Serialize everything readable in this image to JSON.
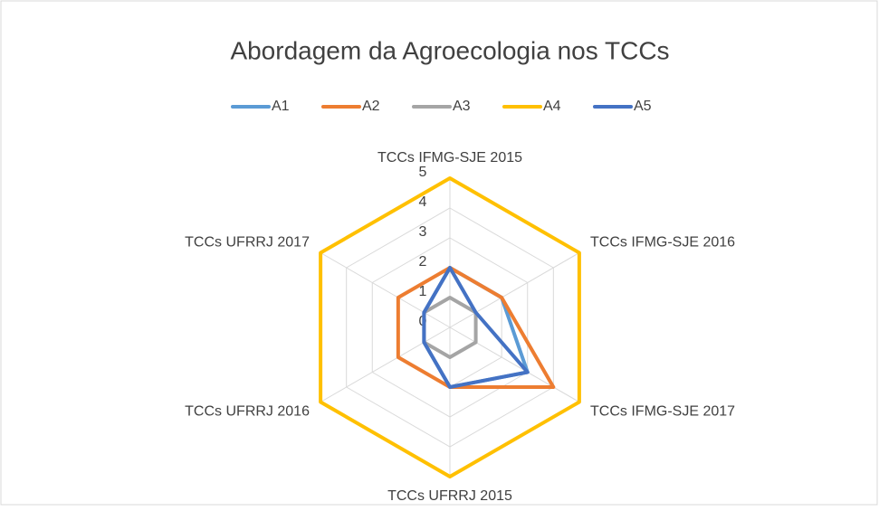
{
  "chart_data": {
    "type": "radar",
    "title": "Abordagem da Agroecologia nos TCCs",
    "categories": [
      "TCCs IFMG-SJE 2015",
      "TCCs IFMG-SJE 2016",
      "TCCs IFMG-SJE 2017",
      "TCCs UFRRJ 2015",
      "TCCs UFRRJ 2016",
      "TCCs UFRRJ 2017"
    ],
    "series": [
      {
        "name": "A1",
        "color": "#5b9bd5",
        "values": [
          2,
          2,
          3,
          2,
          1,
          1
        ]
      },
      {
        "name": "A2",
        "color": "#ed7d31",
        "values": [
          2,
          2,
          4,
          2,
          2,
          2
        ]
      },
      {
        "name": "A3",
        "color": "#a5a5a5",
        "values": [
          1,
          1,
          1,
          1,
          1,
          1
        ]
      },
      {
        "name": "A4",
        "color": "#ffc000",
        "values": [
          5,
          5,
          5,
          5,
          5,
          5
        ]
      },
      {
        "name": "A5",
        "color": "#4472c4",
        "values": [
          2,
          1,
          3,
          2,
          1,
          1
        ]
      }
    ],
    "ylim": [
      0,
      5
    ],
    "yticks": [
      0,
      1,
      2,
      3,
      4,
      5
    ],
    "grid": true,
    "legend": "top"
  }
}
